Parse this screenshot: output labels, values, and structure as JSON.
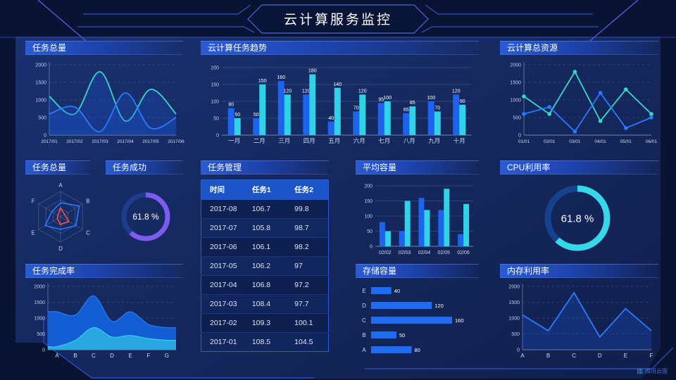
{
  "header": {
    "title": "云计算服务监控"
  },
  "watermark": {
    "label": "腾讯云图"
  },
  "colors": {
    "accent_blue": "#1e62f0",
    "accent_cyan": "#2fd3e8",
    "accent_teal": "#3bd6c6",
    "accent_purple": "#7d5bef",
    "accent_red": "#ff4f3e",
    "panel_header": "#2a5bd4",
    "background": "#0a1432"
  },
  "panels": {
    "tasks_total_line": {
      "title": "任务总量"
    },
    "task_trend": {
      "title": "云计算任务趋势"
    },
    "total_resources": {
      "title": "云计算总资源"
    },
    "radar": {
      "title": "任务总量"
    },
    "task_success": {
      "title": "任务成功"
    },
    "task_management": {
      "title": "任务管理"
    },
    "avg_capacity": {
      "title": "平均容量"
    },
    "cpu": {
      "title": "CPU利用率"
    },
    "completion": {
      "title": "任务完成率"
    },
    "storage": {
      "title": "存储容量"
    },
    "memory": {
      "title": "内存利用率"
    }
  },
  "chart_data": [
    {
      "id": "tasks_total_line",
      "type": "line",
      "title": "任务总量",
      "smooth": true,
      "area": true,
      "markers": false,
      "x": [
        "2017/01",
        "2017/02",
        "2017/03",
        "2017/04",
        "2017/05",
        "2017/06"
      ],
      "ylim": [
        0,
        2000
      ],
      "yticks": [
        0,
        500,
        1000,
        1500,
        2000
      ],
      "grid": "dashed",
      "series": [
        {
          "name": "series-teal",
          "color": "#3bd6c6",
          "values": [
            1100,
            600,
            1800,
            400,
            1300,
            600
          ]
        },
        {
          "name": "series-blue",
          "color": "#2a7bff",
          "values": [
            600,
            800,
            100,
            1200,
            200,
            500
          ]
        }
      ]
    },
    {
      "id": "task_trend",
      "type": "bar",
      "title": "云计算任务趋势",
      "categories": [
        "一月",
        "二月",
        "三月",
        "四月",
        "五月",
        "六月",
        "七月",
        "八月",
        "九月",
        "十月"
      ],
      "ylim": [
        0,
        200
      ],
      "yticks": [
        0,
        50,
        100,
        150,
        200
      ],
      "grid": "solid",
      "value_labels": true,
      "series": [
        {
          "name": "任务1",
          "color": "#1e62f0",
          "values": [
            80,
            50,
            160,
            120,
            40,
            70,
            95,
            65,
            100,
            120
          ]
        },
        {
          "name": "任务2",
          "color": "#2fd3e8",
          "values": [
            50,
            150,
            120,
            180,
            140,
            120,
            100,
            85,
            70,
            90
          ]
        }
      ]
    },
    {
      "id": "total_resources",
      "type": "line",
      "title": "云计算总资源",
      "smooth": false,
      "area": false,
      "markers": true,
      "x": [
        "01/01",
        "02/01",
        "03/01",
        "04/01",
        "05/01",
        "06/01"
      ],
      "ylim": [
        0,
        2000
      ],
      "yticks": [
        0,
        500,
        1000,
        1500,
        2000
      ],
      "grid": "dashed",
      "series": [
        {
          "name": "series-teal",
          "color": "#3bd6c6",
          "values": [
            1100,
            600,
            1800,
            400,
            1300,
            600
          ]
        },
        {
          "name": "series-blue",
          "color": "#2a7bff",
          "values": [
            600,
            800,
            100,
            1200,
            200,
            500
          ]
        }
      ]
    },
    {
      "id": "task_radar",
      "type": "radar",
      "title": "任务总量",
      "axes": [
        "A",
        "B",
        "C",
        "D",
        "E",
        "F"
      ],
      "max": 100,
      "series": [
        {
          "name": "radar-blue",
          "color": "#2a7bff",
          "values": [
            55,
            85,
            70,
            50,
            70,
            40
          ]
        },
        {
          "name": "radar-red",
          "color": "#ff4f3e",
          "values": [
            35,
            18,
            38,
            30,
            15,
            12
          ]
        }
      ]
    },
    {
      "id": "task_success_gauge",
      "type": "donut",
      "title": "任务成功",
      "value": 61.8,
      "label": "61.8 %",
      "color": "#7d5bef",
      "track": "#1d3e8f"
    },
    {
      "id": "task_table",
      "type": "table",
      "title": "任务管理",
      "headers": [
        "时间",
        "任务1",
        "任务2"
      ],
      "rows": [
        [
          "2017-08",
          "106.7",
          "99.8"
        ],
        [
          "2017-07",
          "105.8",
          "98.7"
        ],
        [
          "2017-06",
          "106.1",
          "98.2"
        ],
        [
          "2017-05",
          "106.2",
          "97"
        ],
        [
          "2017-04",
          "106.8",
          "97.2"
        ],
        [
          "2017-03",
          "108.4",
          "97.7"
        ],
        [
          "2017-02",
          "109.3",
          "100.1"
        ],
        [
          "2017-01",
          "108.5",
          "104.5"
        ]
      ]
    },
    {
      "id": "avg_capacity",
      "type": "bar",
      "title": "平均容量",
      "categories": [
        "02/02",
        "02/03",
        "02/04",
        "02/05",
        "02/06"
      ],
      "ylim": [
        0,
        200
      ],
      "yticks": [
        0,
        50,
        100,
        150,
        200
      ],
      "grid": "solid",
      "value_labels": false,
      "series": [
        {
          "name": "series-blue",
          "color": "#1e62f0",
          "values": [
            80,
            50,
            160,
            120,
            40
          ]
        },
        {
          "name": "series-cyan",
          "color": "#2fd3e8",
          "values": [
            50,
            150,
            120,
            190,
            140
          ]
        }
      ]
    },
    {
      "id": "cpu_gauge",
      "type": "donut",
      "title": "CPU利用率",
      "value": 61.8,
      "label": "61.8 %",
      "color": "#35d7e8",
      "track": "#15418f"
    },
    {
      "id": "completion_area",
      "type": "area",
      "title": "任务完成率",
      "categories": [
        "A",
        "B",
        "C",
        "D",
        "E",
        "F",
        "G"
      ],
      "ylim": [
        0,
        2000
      ],
      "yticks": [
        0,
        500,
        1000,
        1500,
        2000
      ],
      "grid": "dashed",
      "series": [
        {
          "name": "area-blue",
          "color": "#1360da",
          "edge": "#2f7bef",
          "values": [
            1200,
            1100,
            1700,
            900,
            1200,
            800,
            700
          ]
        },
        {
          "name": "area-cyan",
          "color": "#2aabe2",
          "edge": "#3fc8f0",
          "values": [
            100,
            300,
            700,
            400,
            450,
            350,
            300
          ]
        }
      ]
    },
    {
      "id": "storage",
      "type": "hbar",
      "title": "存储容量",
      "categories": [
        "E",
        "D",
        "C",
        "B",
        "A"
      ],
      "values": [
        40,
        120,
        160,
        50,
        80
      ],
      "color": "#1f6bf2",
      "max": 160
    },
    {
      "id": "memory",
      "type": "line",
      "title": "内存利用率",
      "smooth": false,
      "area": true,
      "markers": false,
      "x": [
        "A",
        "B",
        "C",
        "D",
        "E",
        "F"
      ],
      "ylim": [
        0,
        2000
      ],
      "yticks": [
        0,
        500,
        1000,
        1500,
        2000
      ],
      "grid": "dashed",
      "series": [
        {
          "name": "series-blue",
          "color": "#2a7bff",
          "values": [
            1100,
            600,
            1800,
            400,
            1300,
            600
          ]
        }
      ]
    }
  ]
}
